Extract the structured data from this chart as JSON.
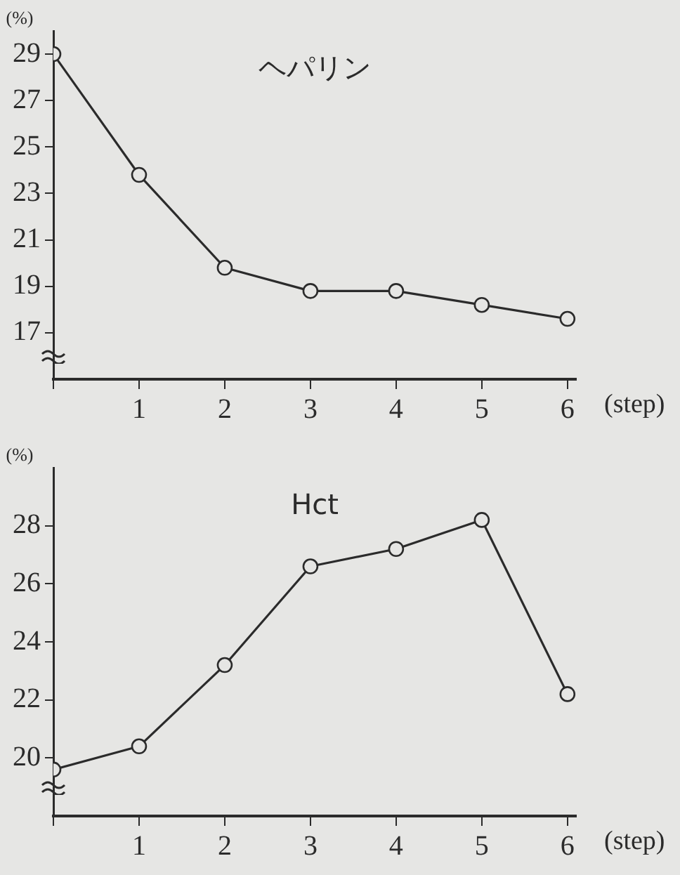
{
  "chart_data": [
    {
      "type": "line",
      "title": "ヘパリン",
      "xlabel": "(step)",
      "ylabel": "(%)",
      "x": [
        0,
        1,
        2,
        3,
        4,
        5,
        6
      ],
      "series": [
        {
          "color": "#2b2b2b",
          "values": [
            29.0,
            23.8,
            19.8,
            18.8,
            18.8,
            18.2,
            17.6
          ]
        }
      ],
      "xlim": [
        0,
        6.1
      ],
      "xticks": [
        {
          "value": 0,
          "label": null
        },
        1,
        2,
        3,
        4,
        5,
        6
      ],
      "ylim": [
        15,
        30
      ],
      "yticks": [
        17,
        19,
        21,
        23,
        25,
        27,
        29
      ],
      "grid": false,
      "legend": false,
      "marker": "circle",
      "line_style": "solid"
    },
    {
      "type": "line",
      "title": "Hct",
      "xlabel": "(step)",
      "ylabel": "(%)",
      "x": [
        0,
        1,
        2,
        3,
        4,
        5,
        6
      ],
      "series": [
        {
          "color": "#2b2b2b",
          "values": [
            19.6,
            20.4,
            23.2,
            26.6,
            27.2,
            28.2,
            22.2
          ]
        }
      ],
      "xlim": [
        0,
        6.1
      ],
      "xticks": [
        {
          "value": 0,
          "label": null
        },
        1,
        2,
        3,
        4,
        5,
        6
      ],
      "ylim": [
        18,
        30
      ],
      "yticks": [
        20,
        22,
        24,
        26,
        28
      ],
      "grid": false,
      "legend": false,
      "marker": "circle",
      "line_style": "solid"
    }
  ]
}
